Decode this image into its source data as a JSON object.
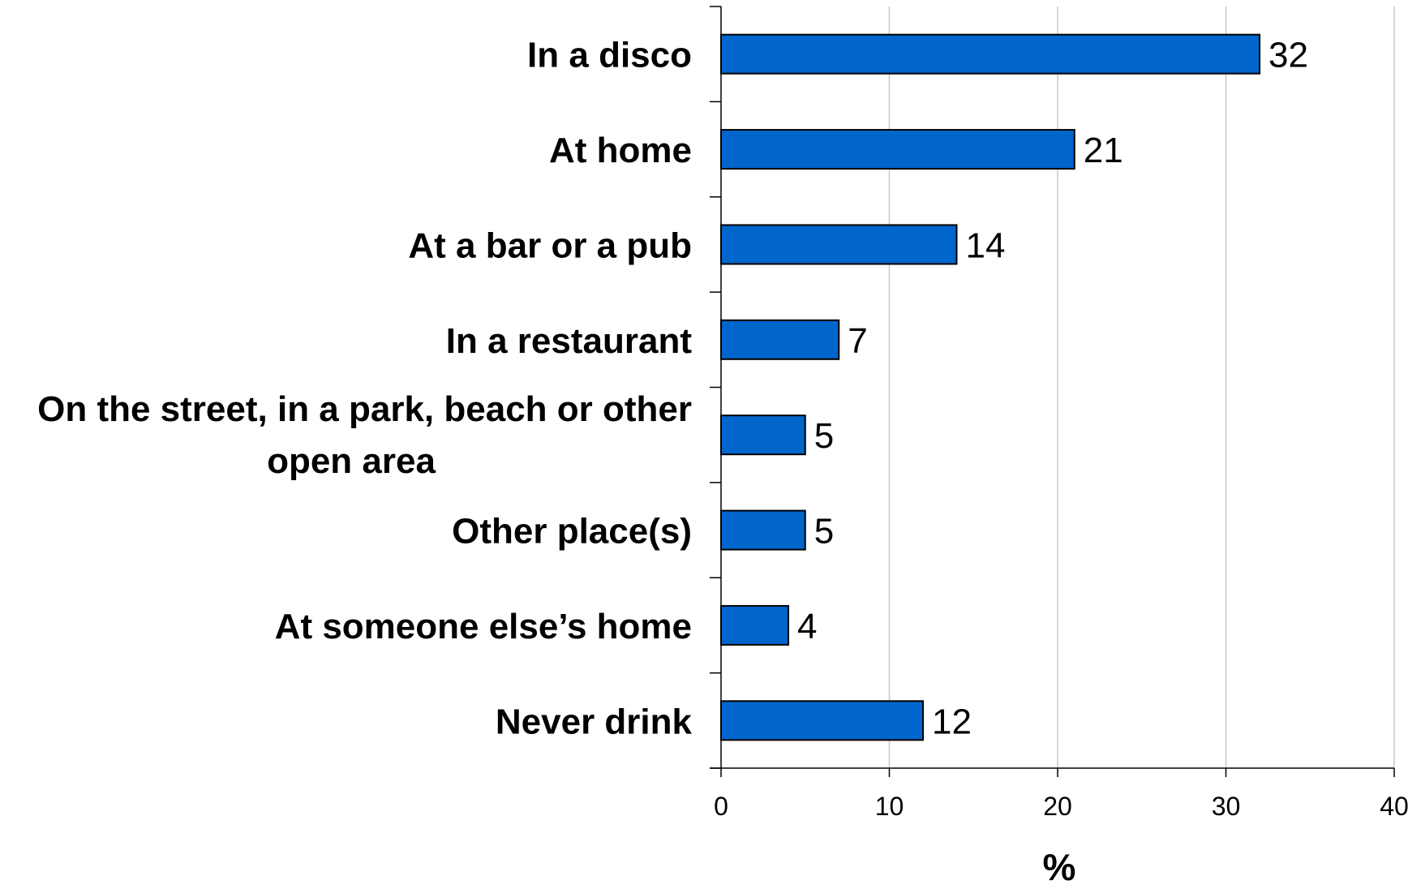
{
  "chart_data": {
    "type": "bar",
    "orientation": "horizontal",
    "categories": [
      [
        "In a disco"
      ],
      [
        "At home"
      ],
      [
        "At a bar or a pub"
      ],
      [
        "In a restaurant"
      ],
      [
        "On the street, in a park, beach or other",
        "open area"
      ],
      [
        "Other place(s)"
      ],
      [
        "At someone else’s home"
      ],
      [
        "Never drink"
      ]
    ],
    "values": [
      32,
      21,
      14,
      7,
      5,
      5,
      4,
      12
    ],
    "xlim": [
      0,
      40
    ],
    "xticks": [
      0,
      10,
      20,
      30,
      40
    ],
    "xlabel": "%",
    "grid": "vertical",
    "bar_color": "#0066CC"
  }
}
